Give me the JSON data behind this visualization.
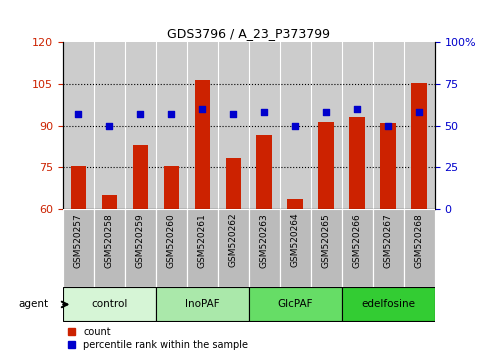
{
  "title": "GDS3796 / A_23_P373799",
  "samples": [
    "GSM520257",
    "GSM520258",
    "GSM520259",
    "GSM520260",
    "GSM520261",
    "GSM520262",
    "GSM520263",
    "GSM520264",
    "GSM520265",
    "GSM520266",
    "GSM520267",
    "GSM520268"
  ],
  "count_values": [
    75.5,
    65.0,
    83.0,
    75.5,
    106.5,
    78.5,
    86.5,
    63.5,
    91.5,
    93.0,
    91.0,
    105.5
  ],
  "percentile_values": [
    57,
    50,
    57,
    57,
    60,
    57,
    58,
    50,
    58,
    60,
    50,
    58
  ],
  "groups": [
    {
      "label": "control",
      "start": 0,
      "end": 3,
      "color": "#d6f5d6"
    },
    {
      "label": "InoPAF",
      "start": 3,
      "end": 6,
      "color": "#aae8aa"
    },
    {
      "label": "GlcPAF",
      "start": 6,
      "end": 9,
      "color": "#66dd66"
    },
    {
      "label": "edelfosine",
      "start": 9,
      "end": 12,
      "color": "#33cc33"
    }
  ],
  "ylim_left": [
    60,
    120
  ],
  "ylim_right": [
    0,
    100
  ],
  "yticks_left": [
    60,
    75,
    90,
    105,
    120
  ],
  "yticks_right": [
    0,
    25,
    50,
    75,
    100
  ],
  "ytick_labels_right": [
    "0",
    "25",
    "50",
    "75",
    "100%"
  ],
  "bar_color": "#cc2200",
  "dot_color": "#0000cc",
  "plot_bg_color": "#cccccc",
  "ylabel_left_color": "#cc2200",
  "ylabel_right_color": "#0000cc",
  "legend_count_label": "count",
  "legend_pct_label": "percentile rank within the sample",
  "agent_label": "agent",
  "sample_box_color": "#bbbbbb",
  "grid_lines": [
    75,
    90,
    105
  ],
  "bar_width": 0.5
}
